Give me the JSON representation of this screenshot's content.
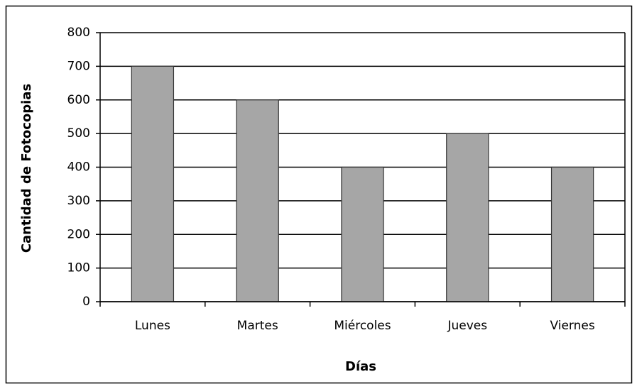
{
  "chart_data": {
    "type": "bar",
    "x_label": "Días",
    "y_label": "Cantidad de Fotocopias",
    "categories": [
      "Lunes",
      "Martes",
      "Miércoles",
      "Jueves",
      "Viernes"
    ],
    "values": [
      700,
      600,
      400,
      500,
      400
    ],
    "color": "#a6a6a6",
    "ylim": [
      0,
      800
    ],
    "yticks": [
      0,
      100,
      200,
      300,
      400,
      500,
      600,
      700,
      800
    ],
    "grid": true
  }
}
